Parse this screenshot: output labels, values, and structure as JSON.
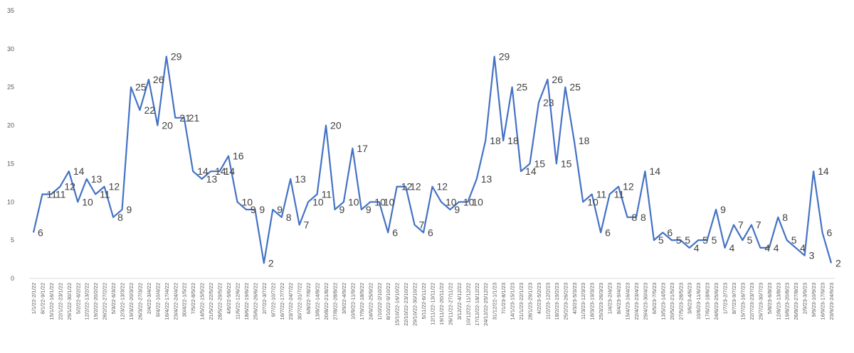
{
  "chart_data": {
    "type": "line",
    "title": "",
    "xlabel": "",
    "ylabel": "",
    "ylim": [
      0,
      35
    ],
    "yticks": [
      0,
      5,
      10,
      15,
      20,
      25,
      30,
      35
    ],
    "grid": false,
    "legend": "none",
    "line_color": "#4472C4",
    "categories": [
      "1/1/22-2/1/22",
      "8/1/22-9/1/22",
      "15/1/22-16/1/22",
      "22/1/22-23/1/22",
      "29/1/22-30/1/22",
      "5/2/22-6/2/22",
      "12/2/22-13/2/22",
      "19/2/22-20/2/22",
      "26/2/22-27/2/22",
      "5/3/22-6/3/22",
      "12/3/22-13/3/22",
      "19/3/22-20/3/22",
      "26/3/22-27/3/22",
      "2/4/22-3/4/22",
      "9/4/22-10/4/22",
      "16/4/22-17/4/22",
      "23/4/22-24/4/22",
      "30/4/22-1/5/22",
      "7/5/22-8/5/22",
      "14/5/22-15/5/22",
      "21/5/22-22/5/22",
      "28/5/22-29/5/22",
      "4/6/22-5/6/22",
      "11/6/22-12/6/22",
      "18/6/22-19/6/22",
      "25/6/22-26/6/22",
      "2/7/22-3/7/22",
      "9/7/22-10/7/22",
      "16/7/22-17/7/22",
      "23/7/22-24/7/22",
      "30/7/22-31/7/22",
      "6/8/22-7/8/22",
      "13/8/22-14/8/22",
      "20/8/22-21/8/22",
      "27/8/22-28/8/22",
      "3/9/22-4/9/22",
      "10/9/22-11/9/22",
      "17/9/22-18/9/22",
      "24/9/22-25/9/22",
      "1/10/22-2/10/22",
      "8/10/22-9/10/22",
      "15/10/22-16/10/22",
      "22/10/22-23/10/22",
      "29/10/22-30/10/22",
      "5/11/22-6/11/22",
      "12/11/22-13/11/22",
      "19/11/22-20/11/22",
      "26/11/22-27/11/22",
      "3/12/22-4/12/22",
      "10/12/22-11/12/22",
      "17/12/22-18/12/22",
      "24/12/22-25/12/22",
      "31/12/22-1/1/23",
      "7/1/23-8/1/23",
      "14/1/23-15/1/23",
      "21/1/23-22/1/23",
      "28/1/23-29/1/23",
      "4/2/23-5/2/23",
      "11/2/23-12/2/23",
      "18/2/23-19/2/23",
      "25/2/23-26/2/23",
      "4/3/23-5/3/23",
      "11/3/23-12/3/23",
      "18/3/23-19/3/23",
      "25/3/23-26/3/23",
      "1/4/23-2/4/23",
      "8/4/23-9/4/23",
      "15/4/23-16/4/23",
      "22/4/23-23/4/23",
      "29/4/23-30/4/23",
      "6/5/23-7/5/23",
      "13/5/23-14/5/23",
      "20/5/23-21/5/23",
      "27/5/23-28/5/23",
      "3/6/23-4/6/23",
      "10/6/23-11/6/23",
      "17/6/23-18/6/23",
      "24/6/23-25/6/23",
      "1/7/23-2/7/23",
      "8/7/23-9/7/23",
      "15/7/23-16/7/23",
      "22/7/23-23/7/23",
      "29/7/23-30/7/23",
      "5/8/23-6/8/23",
      "12/8/23-13/8/23",
      "19/8/23-20/8/23",
      "26/8/23-27/8/23",
      "2/9/23-3/9/23",
      "9/9/23-10/9/23",
      "16/9/23-17/9/23",
      "23/9/23-24/9/23"
    ],
    "values": [
      6,
      11,
      11,
      12,
      14,
      10,
      13,
      11,
      12,
      8,
      9,
      25,
      22,
      26,
      20,
      29,
      21,
      21,
      14,
      13,
      14,
      14,
      16,
      10,
      9,
      9,
      2,
      9,
      8,
      13,
      7,
      10,
      11,
      20,
      9,
      10,
      17,
      9,
      10,
      10,
      6,
      12,
      12,
      7,
      6,
      12,
      10,
      9,
      10,
      10,
      13,
      18,
      29,
      18,
      25,
      14,
      15,
      23,
      26,
      15,
      25,
      18,
      10,
      11,
      6,
      11,
      12,
      8,
      8,
      14,
      5,
      6,
      5,
      5,
      4,
      5,
      5,
      9,
      4,
      7,
      5,
      7,
      4,
      4,
      8,
      5,
      4,
      3,
      14,
      6,
      2
    ]
  }
}
